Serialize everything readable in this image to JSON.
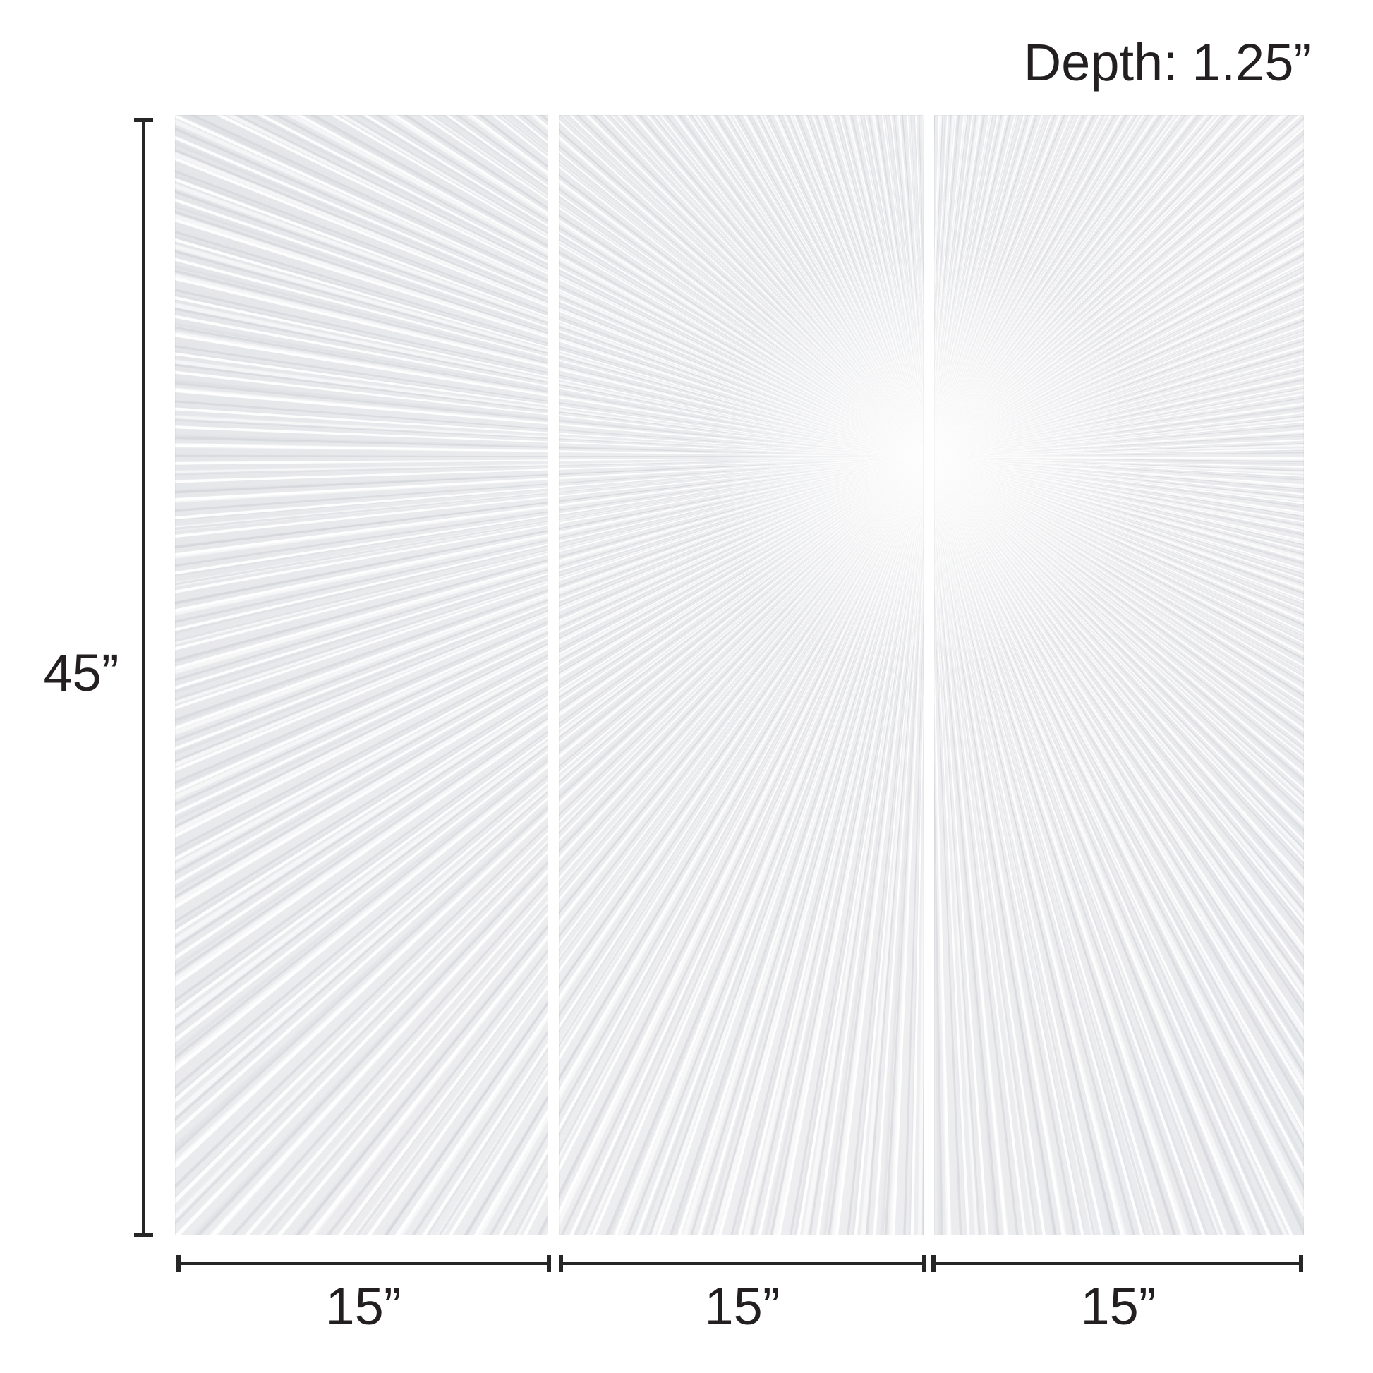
{
  "labels": {
    "depth": "Depth: 1.25”",
    "height": "45”",
    "widths": [
      "15”",
      "15”",
      "15”"
    ]
  },
  "artwork": {
    "panel_count": 3,
    "base_color": "#e9eaec",
    "ridge_color": "#ffffff",
    "shadow_stroke_color": "#c9cbd0",
    "divider_color": "#ffffff"
  },
  "colors": {
    "dimension_lines": "#262626",
    "label_text": "#231f20",
    "page_background": "#ffffff"
  }
}
